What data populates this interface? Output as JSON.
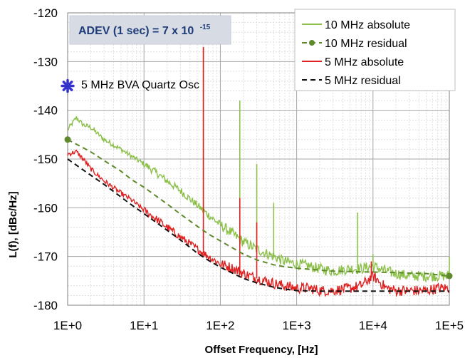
{
  "chart_data": {
    "type": "line",
    "title": "",
    "xlabel": "Offset Frequency, [Hz]",
    "ylabel": "L(f), [dBc/Hz]",
    "x_scale": "log",
    "xlim": [
      1,
      100000
    ],
    "ylim": [
      -180,
      -120
    ],
    "grid": true,
    "legend_position": "top-right",
    "x_tick_labels": [
      "1E+0",
      "1E+1",
      "1E+2",
      "1E+3",
      "1E+4",
      "1E+5"
    ],
    "x_tick_values": [
      1,
      10,
      100,
      1000,
      10000,
      100000
    ],
    "y_tick_labels": [
      "-120",
      "-130",
      "-140",
      "-150",
      "-160",
      "-170",
      "-180"
    ],
    "y_tick_values": [
      -120,
      -130,
      -140,
      -150,
      -160,
      -170,
      -180
    ],
    "annotation": {
      "adev_text": "ADEV (1 sec) = 7 x 10",
      "adev_exponent": "-15",
      "adev_box_color": "#d6dbe4"
    },
    "marker_point": {
      "label": "5 MHz BVA Quartz Osc",
      "x": 1,
      "y": -135,
      "color": "#3333cc"
    },
    "series": [
      {
        "name": "10 MHz absolute",
        "color": "#8cc04a",
        "style": "solid",
        "x": [
          1,
          1.3,
          1.6,
          2,
          3,
          5,
          7,
          10,
          15,
          20,
          30,
          50,
          70,
          100,
          150,
          200,
          300,
          500,
          700,
          1000,
          1500,
          2000,
          3000,
          5000,
          7000,
          10000,
          15000,
          20000,
          30000,
          50000,
          70000,
          100000
        ],
        "y": [
          -144,
          -141.5,
          -143,
          -143.5,
          -146,
          -148,
          -149.5,
          -151,
          -153,
          -154.5,
          -156.5,
          -159.5,
          -161.5,
          -163.5,
          -165.5,
          -167,
          -168.5,
          -170,
          -171,
          -171.5,
          -172,
          -172.5,
          -173,
          -172.5,
          -172.5,
          -172,
          -173,
          -173.5,
          -174,
          -174,
          -174,
          -174
        ],
        "spurs": [
          {
            "x": 60,
            "y": -127
          },
          {
            "x": 180,
            "y": -138
          },
          {
            "x": 300,
            "y": -151
          },
          {
            "x": 500,
            "y": -159
          },
          {
            "x": 6300,
            "y": -161
          },
          {
            "x": 10000,
            "y": -169.5
          },
          {
            "x": 100000,
            "y": -170
          }
        ]
      },
      {
        "name": "10 MHz residual",
        "color": "#5e8a2c",
        "style": "dashed",
        "marker": "circle",
        "x": [
          1,
          2,
          3,
          5,
          7,
          10,
          20,
          30,
          50,
          70,
          100,
          200,
          300,
          500,
          700,
          1000,
          2000,
          3000,
          5000,
          10000,
          20000,
          50000,
          100000
        ],
        "y": [
          -146,
          -148.5,
          -150.3,
          -152.5,
          -154.3,
          -155.8,
          -159.2,
          -161.3,
          -163.8,
          -165.4,
          -166.8,
          -169.5,
          -170.7,
          -171.7,
          -172.1,
          -172.4,
          -172.8,
          -173,
          -173.1,
          -173.2,
          -173.3,
          -173.5,
          -174
        ],
        "marker_x": [
          1,
          100000
        ]
      },
      {
        "name": "5 MHz absolute",
        "color": "#e02020",
        "style": "solid",
        "x": [
          1,
          1.3,
          1.6,
          2,
          3,
          5,
          7,
          10,
          15,
          20,
          30,
          50,
          70,
          100,
          150,
          200,
          300,
          500,
          700,
          1000,
          1500,
          2000,
          3000,
          5000,
          7000,
          10000,
          15000,
          20000,
          30000,
          50000,
          70000,
          100000
        ],
        "y": [
          -149,
          -148.5,
          -150,
          -152,
          -154.5,
          -157,
          -158.5,
          -160.5,
          -162.5,
          -164,
          -166,
          -168.5,
          -170,
          -171.5,
          -172.5,
          -173.5,
          -174.5,
          -175.5,
          -176,
          -176.5,
          -176.5,
          -177,
          -177,
          -176.5,
          -176,
          -174,
          -176.5,
          -177,
          -177,
          -177,
          -176.5,
          -176.5
        ],
        "spurs": [
          {
            "x": 60,
            "y": -127
          },
          {
            "x": 180,
            "y": -158
          },
          {
            "x": 300,
            "y": -163
          },
          {
            "x": 9500,
            "y": -171
          }
        ]
      },
      {
        "name": "5 MHz residual",
        "color": "#111111",
        "style": "dashed",
        "x": [
          1,
          2,
          3,
          5,
          7,
          10,
          20,
          30,
          50,
          70,
          100,
          200,
          300,
          500,
          700,
          1000,
          2000,
          3000,
          5000,
          10000,
          20000,
          50000,
          100000
        ],
        "y": [
          -150,
          -153.3,
          -155.2,
          -157.8,
          -159.5,
          -161.2,
          -164.6,
          -166.6,
          -169.3,
          -170.8,
          -172.2,
          -174.5,
          -175.4,
          -176.3,
          -176.7,
          -177,
          -177.1,
          -177.1,
          -177.1,
          -177.1,
          -177.1,
          -177.1,
          -177.1
        ]
      }
    ]
  }
}
